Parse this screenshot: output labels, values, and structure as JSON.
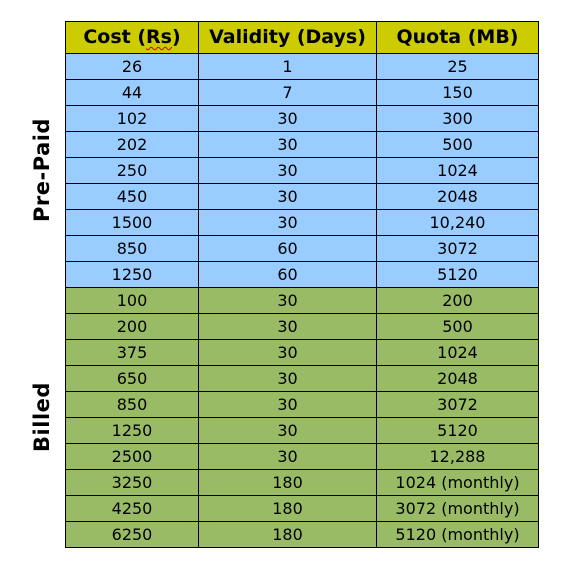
{
  "side_labels": {
    "prepaid": "Pre-Paid",
    "billed": "Billed"
  },
  "table": {
    "headers": {
      "cost_prefix": "Cost (",
      "cost_unit": "Rs",
      "cost_suffix": ")",
      "validity": "Validity (Days)",
      "quota": "Quota (MB)"
    },
    "prepaid_rows": [
      {
        "cost": "26",
        "validity": "1",
        "quota": "25"
      },
      {
        "cost": "44",
        "validity": "7",
        "quota": "150"
      },
      {
        "cost": "102",
        "validity": "30",
        "quota": "300"
      },
      {
        "cost": "202",
        "validity": "30",
        "quota": "500"
      },
      {
        "cost": "250",
        "validity": "30",
        "quota": "1024"
      },
      {
        "cost": "450",
        "validity": "30",
        "quota": "2048"
      },
      {
        "cost": "1500",
        "validity": "30",
        "quota": "10,240"
      },
      {
        "cost": "850",
        "validity": "60",
        "quota": "3072"
      },
      {
        "cost": "1250",
        "validity": "60",
        "quota": "5120"
      }
    ],
    "billed_rows": [
      {
        "cost": "100",
        "validity": "30",
        "quota": "200"
      },
      {
        "cost": "200",
        "validity": "30",
        "quota": "500"
      },
      {
        "cost": "375",
        "validity": "30",
        "quota": "1024"
      },
      {
        "cost": "650",
        "validity": "30",
        "quota": "2048"
      },
      {
        "cost": "850",
        "validity": "30",
        "quota": "3072"
      },
      {
        "cost": "1250",
        "validity": "30",
        "quota": "5120"
      },
      {
        "cost": "2500",
        "validity": "30",
        "quota": "12,288"
      },
      {
        "cost": "3250",
        "validity": "180",
        "quota": "1024 (monthly)"
      },
      {
        "cost": "4250",
        "validity": "180",
        "quota": "3072 (monthly)"
      },
      {
        "cost": "6250",
        "validity": "180",
        "quota": "5120 (monthly)"
      }
    ]
  },
  "colors": {
    "header": "#cccc00",
    "prepaid": "#99ccff",
    "billed": "#99bb66"
  }
}
